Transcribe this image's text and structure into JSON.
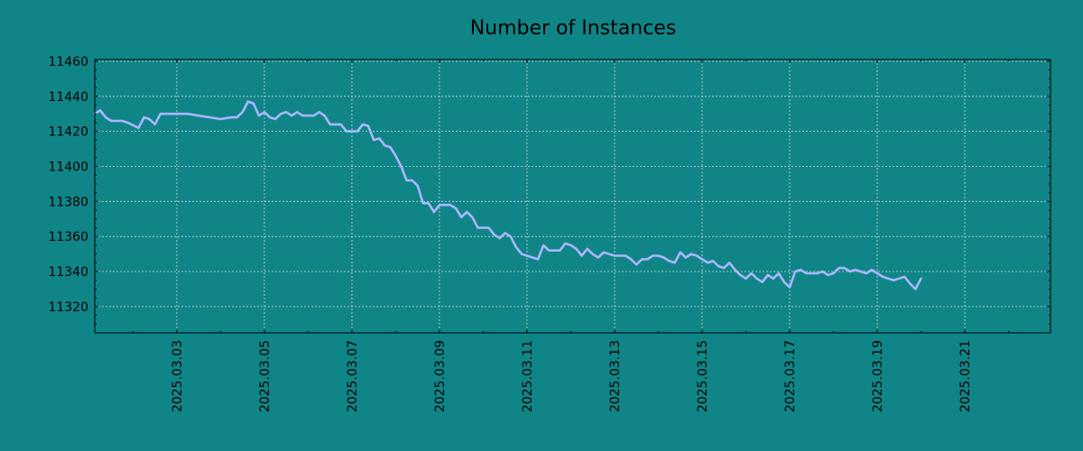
{
  "chart_data": {
    "type": "line",
    "title": "Number of Instances",
    "xlabel": "",
    "ylabel": "",
    "x_tick_labels": [
      "2025.03.03",
      "2025.03.05",
      "2025.03.07",
      "2025.03.09",
      "2025.03.11",
      "2025.03.13",
      "2025.03.15",
      "2025.03.17",
      "2025.03.19",
      "2025.03.21"
    ],
    "y_tick_labels": [
      "11320",
      "11340",
      "11360",
      "11380",
      "11400",
      "11420",
      "11440",
      "11460"
    ],
    "xlim": [
      "2025-03-01 03:00",
      "2025-03-22 23:00"
    ],
    "ylim": [
      11305,
      11461
    ],
    "grid": true,
    "legend": "none",
    "colors": {
      "background": "#108587",
      "line": "#a9b6ff",
      "grid": "#c8d8d8",
      "axis": "#000000"
    },
    "series": [
      {
        "values": [
          [
            "2025-03-01 03:00",
            11430
          ],
          [
            "2025-03-01 06:00",
            11432
          ],
          [
            "2025-03-01 09:00",
            11428
          ],
          [
            "2025-03-01 12:00",
            11426
          ],
          [
            "2025-03-01 18:00",
            11426
          ],
          [
            "2025-03-01 21:00",
            11425
          ],
          [
            "2025-03-02 03:00",
            11422
          ],
          [
            "2025-03-02 06:00",
            11428
          ],
          [
            "2025-03-02 09:00",
            11427
          ],
          [
            "2025-03-02 12:00",
            11424
          ],
          [
            "2025-03-02 15:00",
            11430
          ],
          [
            "2025-03-02 21:00",
            11430
          ],
          [
            "2025-03-03 06:00",
            11430
          ],
          [
            "2025-03-03 12:00",
            11429
          ],
          [
            "2025-03-03 18:00",
            11428
          ],
          [
            "2025-03-04 00:00",
            11427
          ],
          [
            "2025-03-04 06:00",
            11428
          ],
          [
            "2025-03-04 09:00",
            11428
          ],
          [
            "2025-03-04 12:00",
            11431
          ],
          [
            "2025-03-04 15:00",
            11437
          ],
          [
            "2025-03-04 18:00",
            11436
          ],
          [
            "2025-03-04 21:00",
            11429
          ],
          [
            "2025-03-05 00:00",
            11431
          ],
          [
            "2025-03-05 03:00",
            11428
          ],
          [
            "2025-03-05 06:00",
            11427
          ],
          [
            "2025-03-05 09:00",
            11430
          ],
          [
            "2025-03-05 12:00",
            11431
          ],
          [
            "2025-03-05 15:00",
            11429
          ],
          [
            "2025-03-05 18:00",
            11431
          ],
          [
            "2025-03-05 21:00",
            11429
          ],
          [
            "2025-03-06 03:00",
            11429
          ],
          [
            "2025-03-06 06:00",
            11431
          ],
          [
            "2025-03-06 09:00",
            11429
          ],
          [
            "2025-03-06 12:00",
            11424
          ],
          [
            "2025-03-06 18:00",
            11424
          ],
          [
            "2025-03-06 21:00",
            11420
          ],
          [
            "2025-03-07 03:00",
            11420
          ],
          [
            "2025-03-07 06:00",
            11424
          ],
          [
            "2025-03-07 09:00",
            11423
          ],
          [
            "2025-03-07 12:00",
            11415
          ],
          [
            "2025-03-07 15:00",
            11416
          ],
          [
            "2025-03-07 18:00",
            11412
          ],
          [
            "2025-03-07 21:00",
            11411
          ],
          [
            "2025-03-08 00:00",
            11406
          ],
          [
            "2025-03-08 03:00",
            11400
          ],
          [
            "2025-03-08 06:00",
            11392
          ],
          [
            "2025-03-08 09:00",
            11392
          ],
          [
            "2025-03-08 12:00",
            11389
          ],
          [
            "2025-03-08 15:00",
            11379
          ],
          [
            "2025-03-08 18:00",
            11379
          ],
          [
            "2025-03-08 21:00",
            11374
          ],
          [
            "2025-03-09 00:00",
            11378
          ],
          [
            "2025-03-09 06:00",
            11378
          ],
          [
            "2025-03-09 09:00",
            11376
          ],
          [
            "2025-03-09 12:00",
            11371
          ],
          [
            "2025-03-09 15:00",
            11374
          ],
          [
            "2025-03-09 18:00",
            11371
          ],
          [
            "2025-03-09 21:00",
            11365
          ],
          [
            "2025-03-10 03:00",
            11365
          ],
          [
            "2025-03-10 06:00",
            11361
          ],
          [
            "2025-03-10 09:00",
            11359
          ],
          [
            "2025-03-10 12:00",
            11362
          ],
          [
            "2025-03-10 15:00",
            11360
          ],
          [
            "2025-03-10 18:00",
            11354
          ],
          [
            "2025-03-10 21:00",
            11350
          ],
          [
            "2025-03-11 03:00",
            11348
          ],
          [
            "2025-03-11 06:00",
            11347
          ],
          [
            "2025-03-11 09:00",
            11355
          ],
          [
            "2025-03-11 12:00",
            11352
          ],
          [
            "2025-03-11 18:00",
            11352
          ],
          [
            "2025-03-11 21:00",
            11356
          ],
          [
            "2025-03-12 00:00",
            11355
          ],
          [
            "2025-03-12 03:00",
            11353
          ],
          [
            "2025-03-12 06:00",
            11349
          ],
          [
            "2025-03-12 09:00",
            11353
          ],
          [
            "2025-03-12 12:00",
            11350
          ],
          [
            "2025-03-12 15:00",
            11348
          ],
          [
            "2025-03-12 18:00",
            11351
          ],
          [
            "2025-03-12 21:00",
            11350
          ],
          [
            "2025-03-13 00:00",
            11349
          ],
          [
            "2025-03-13 06:00",
            11349
          ],
          [
            "2025-03-13 09:00",
            11347
          ],
          [
            "2025-03-13 12:00",
            11344
          ],
          [
            "2025-03-13 15:00",
            11347
          ],
          [
            "2025-03-13 18:00",
            11347
          ],
          [
            "2025-03-13 21:00",
            11349
          ],
          [
            "2025-03-14 00:00",
            11349
          ],
          [
            "2025-03-14 03:00",
            11348
          ],
          [
            "2025-03-14 06:00",
            11346
          ],
          [
            "2025-03-14 09:00",
            11345
          ],
          [
            "2025-03-14 12:00",
            11351
          ],
          [
            "2025-03-14 15:00",
            11348
          ],
          [
            "2025-03-14 18:00",
            11350
          ],
          [
            "2025-03-14 21:00",
            11349
          ],
          [
            "2025-03-15 00:00",
            11347
          ],
          [
            "2025-03-15 03:00",
            11345
          ],
          [
            "2025-03-15 06:00",
            11346
          ],
          [
            "2025-03-15 09:00",
            11343
          ],
          [
            "2025-03-15 12:00",
            11342
          ],
          [
            "2025-03-15 15:00",
            11345
          ],
          [
            "2025-03-15 18:00",
            11341
          ],
          [
            "2025-03-15 21:00",
            11338
          ],
          [
            "2025-03-16 00:00",
            11336
          ],
          [
            "2025-03-16 03:00",
            11339
          ],
          [
            "2025-03-16 06:00",
            11336
          ],
          [
            "2025-03-16 09:00",
            11334
          ],
          [
            "2025-03-16 12:00",
            11338
          ],
          [
            "2025-03-16 15:00",
            11336
          ],
          [
            "2025-03-16 18:00",
            11339
          ],
          [
            "2025-03-16 21:00",
            11334
          ],
          [
            "2025-03-17 00:00",
            11331
          ],
          [
            "2025-03-17 03:00",
            11340
          ],
          [
            "2025-03-17 06:00",
            11341
          ],
          [
            "2025-03-17 09:00",
            11339
          ],
          [
            "2025-03-17 15:00",
            11339
          ],
          [
            "2025-03-17 18:00",
            11340
          ],
          [
            "2025-03-17 21:00",
            11338
          ],
          [
            "2025-03-18 00:00",
            11339
          ],
          [
            "2025-03-18 03:00",
            11342
          ],
          [
            "2025-03-18 06:00",
            11342
          ],
          [
            "2025-03-18 09:00",
            11340
          ],
          [
            "2025-03-18 12:00",
            11341
          ],
          [
            "2025-03-18 15:00",
            11340
          ],
          [
            "2025-03-18 18:00",
            11339
          ],
          [
            "2025-03-18 21:00",
            11341
          ],
          [
            "2025-03-19 00:00",
            11339
          ],
          [
            "2025-03-19 03:00",
            11337
          ],
          [
            "2025-03-19 06:00",
            11336
          ],
          [
            "2025-03-19 09:00",
            11335
          ],
          [
            "2025-03-19 15:00",
            11337
          ],
          [
            "2025-03-19 18:00",
            11333
          ],
          [
            "2025-03-19 21:00",
            11330
          ],
          [
            "2025-03-20 00:00",
            11336
          ]
        ]
      }
    ]
  }
}
